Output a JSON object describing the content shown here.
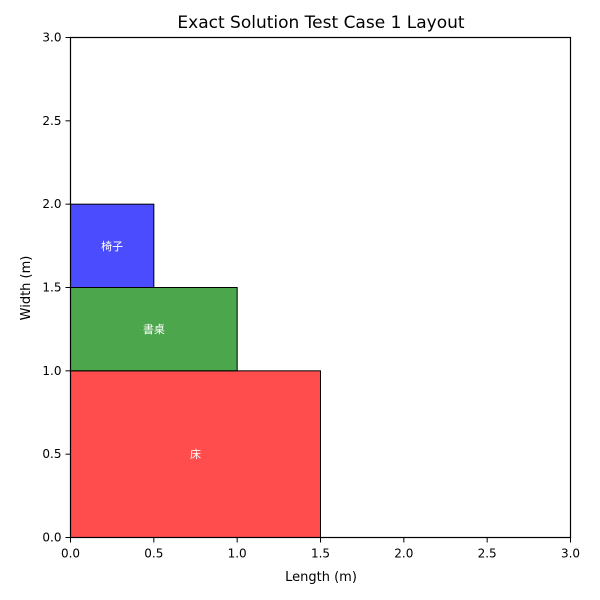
{
  "chart_data": {
    "type": "layout",
    "title": "Exact Solution Test Case 1 Layout",
    "xlabel": "Length (m)",
    "ylabel": "Width (m)",
    "xlim": [
      0,
      3
    ],
    "ylim": [
      0,
      3
    ],
    "xticks": [
      "0.0",
      "0.5",
      "1.0",
      "1.5",
      "2.0",
      "2.5",
      "3.0"
    ],
    "yticks": [
      "0.0",
      "0.5",
      "1.0",
      "1.5",
      "2.0",
      "2.5",
      "3.0"
    ],
    "grid": false,
    "legend": "none",
    "rectangles": [
      {
        "label": "床",
        "x": 0,
        "y": 0,
        "length": 1.5,
        "width": 1.0,
        "color": "#ff0000",
        "alpha": 0.7
      },
      {
        "label": "書桌",
        "x": 0,
        "y": 1.0,
        "length": 1.0,
        "width": 0.5,
        "color": "#008000",
        "alpha": 0.7
      },
      {
        "label": "椅子",
        "x": 0,
        "y": 1.5,
        "length": 0.5,
        "width": 0.5,
        "color": "#0000ff",
        "alpha": 0.7
      }
    ]
  }
}
